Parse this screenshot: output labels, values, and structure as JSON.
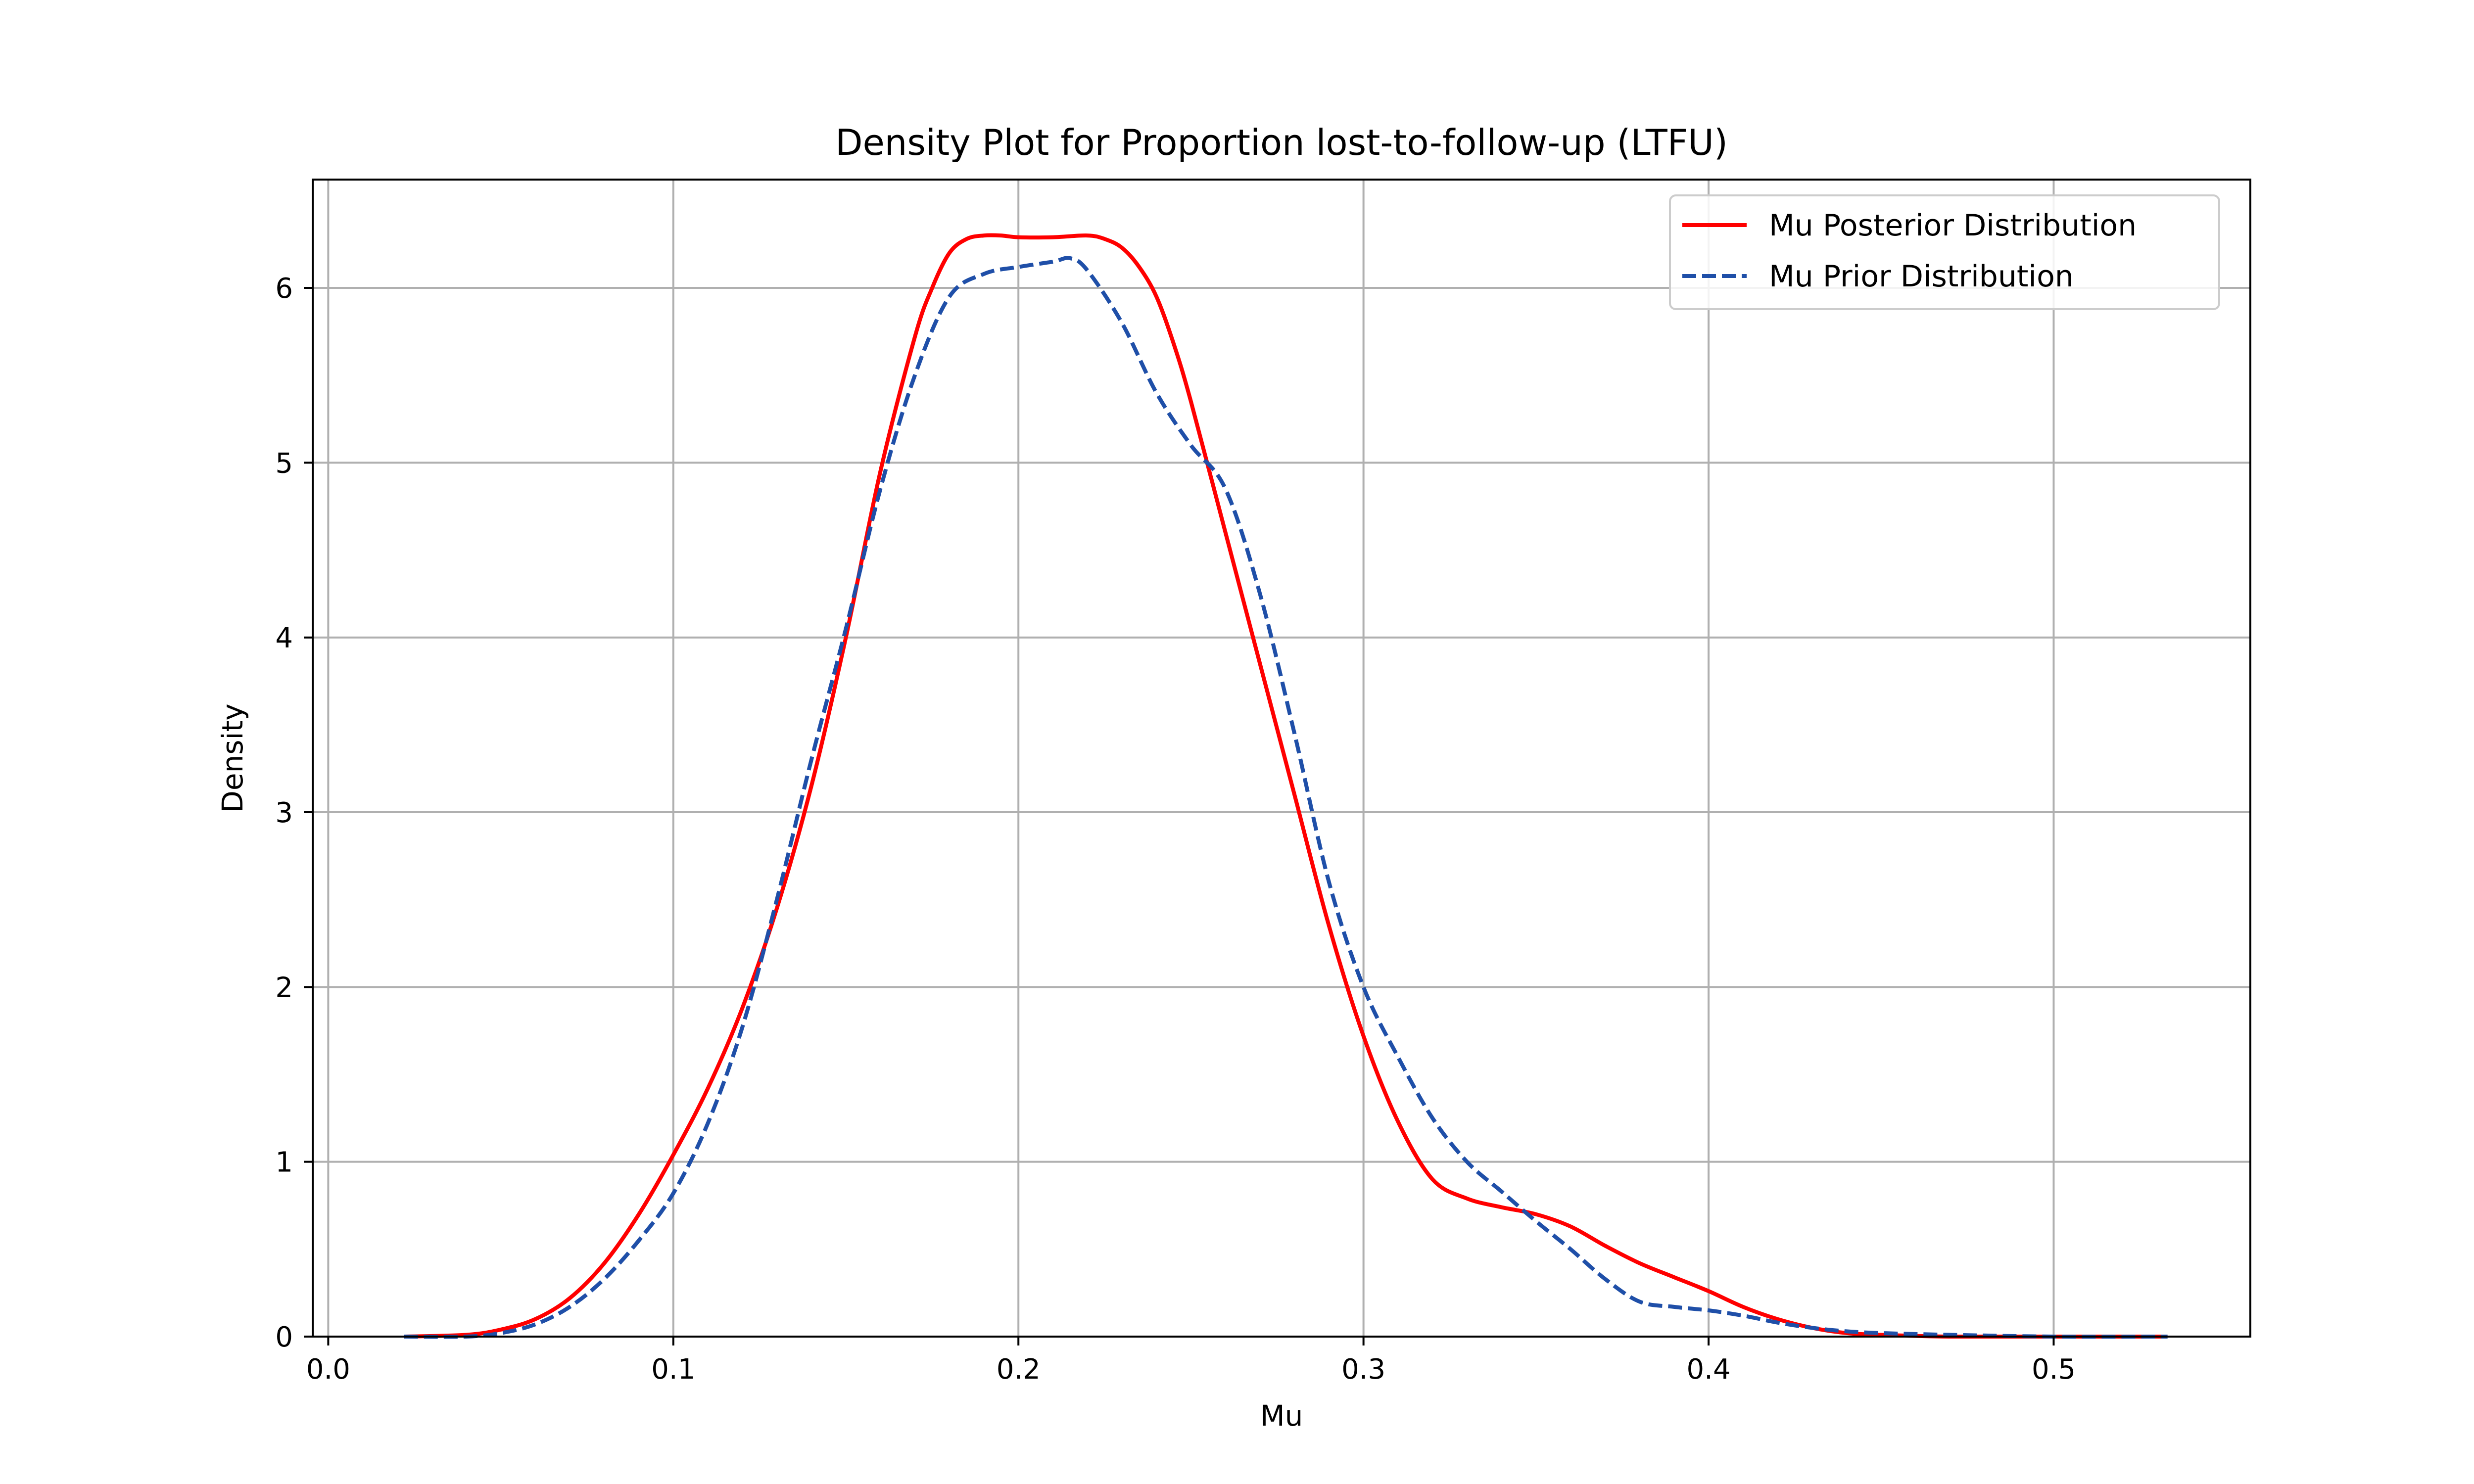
{
  "chart_data": {
    "type": "line",
    "title": "Density Plot for Proportion lost-to-follow-up (LTFU)",
    "xlabel": "Mu",
    "ylabel": "Density",
    "xlim": [
      -0.0045,
      0.557
    ],
    "ylim": [
      0,
      6.62
    ],
    "xticks": [
      0.0,
      0.1,
      0.2,
      0.3,
      0.4,
      0.5
    ],
    "xtick_labels": [
      "0.0",
      "0.1",
      "0.2",
      "0.3",
      "0.4",
      "0.5"
    ],
    "yticks": [
      0,
      1,
      2,
      3,
      4,
      5,
      6
    ],
    "ytick_labels": [
      "0",
      "1",
      "2",
      "3",
      "4",
      "5",
      "6"
    ],
    "grid": true,
    "legend_position": "top-right",
    "series": [
      {
        "name": "Mu Posterior Distribution",
        "color": "#ff0000",
        "style": "solid",
        "x": [
          0.022,
          0.04,
          0.05,
          0.06,
          0.07,
          0.08,
          0.09,
          0.1,
          0.11,
          0.12,
          0.13,
          0.14,
          0.15,
          0.16,
          0.17,
          0.175,
          0.18,
          0.185,
          0.19,
          0.195,
          0.2,
          0.21,
          0.22,
          0.225,
          0.23,
          0.235,
          0.24,
          0.245,
          0.25,
          0.26,
          0.27,
          0.28,
          0.29,
          0.3,
          0.31,
          0.32,
          0.33,
          0.34,
          0.35,
          0.36,
          0.37,
          0.38,
          0.39,
          0.4,
          0.41,
          0.42,
          0.43,
          0.44,
          0.45,
          0.47,
          0.5,
          0.533
        ],
        "y": [
          0.0,
          0.01,
          0.04,
          0.1,
          0.22,
          0.42,
          0.7,
          1.04,
          1.42,
          1.88,
          2.45,
          3.15,
          4.0,
          4.95,
          5.72,
          6.0,
          6.2,
          6.28,
          6.3,
          6.3,
          6.29,
          6.29,
          6.3,
          6.28,
          6.23,
          6.12,
          5.95,
          5.68,
          5.35,
          4.6,
          3.85,
          3.1,
          2.35,
          1.72,
          1.23,
          0.9,
          0.79,
          0.74,
          0.7,
          0.63,
          0.52,
          0.42,
          0.34,
          0.26,
          0.17,
          0.1,
          0.05,
          0.02,
          0.01,
          0.0,
          0.0,
          0.0
        ]
      },
      {
        "name": "Mu Prior Distribution",
        "color": "#1f4fa8",
        "style": "dashed",
        "x": [
          0.022,
          0.04,
          0.05,
          0.06,
          0.07,
          0.08,
          0.09,
          0.1,
          0.11,
          0.12,
          0.13,
          0.14,
          0.15,
          0.16,
          0.17,
          0.18,
          0.19,
          0.2,
          0.21,
          0.215,
          0.22,
          0.23,
          0.24,
          0.25,
          0.26,
          0.27,
          0.28,
          0.29,
          0.3,
          0.31,
          0.32,
          0.33,
          0.34,
          0.35,
          0.36,
          0.37,
          0.38,
          0.39,
          0.4,
          0.41,
          0.42,
          0.43,
          0.44,
          0.45,
          0.47,
          0.5,
          0.533
        ],
        "y": [
          0.0,
          0.0,
          0.02,
          0.07,
          0.17,
          0.33,
          0.55,
          0.82,
          1.22,
          1.77,
          2.5,
          3.3,
          4.05,
          4.85,
          5.5,
          5.95,
          6.08,
          6.12,
          6.15,
          6.17,
          6.1,
          5.8,
          5.4,
          5.1,
          4.85,
          4.25,
          3.45,
          2.6,
          2.0,
          1.6,
          1.25,
          1.0,
          0.83,
          0.66,
          0.5,
          0.33,
          0.2,
          0.17,
          0.15,
          0.12,
          0.08,
          0.05,
          0.03,
          0.02,
          0.01,
          0.0,
          0.0
        ]
      }
    ]
  }
}
